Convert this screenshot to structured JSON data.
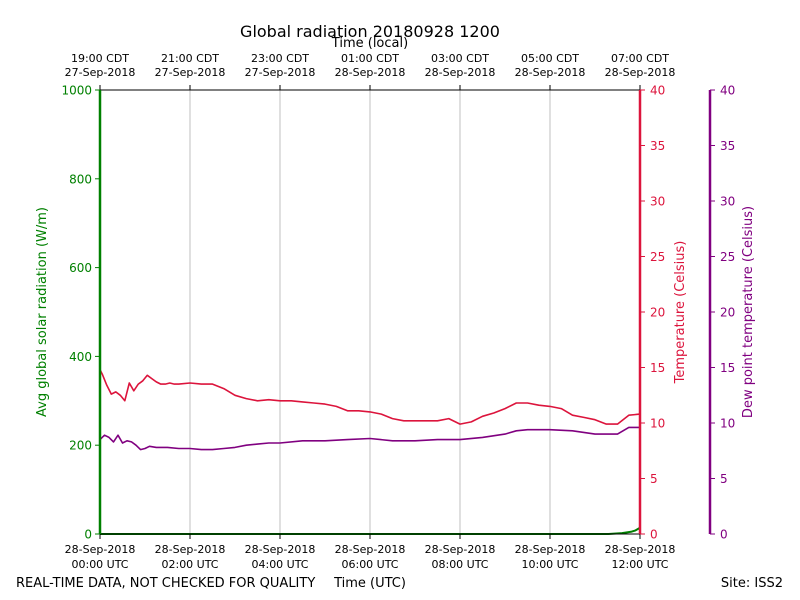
{
  "chart_data": {
    "type": "line",
    "title": "Global radiation 20180928 1200",
    "top_axis_title": "Time (local)",
    "xlabel": "Time (UTC)",
    "footer_left": "REAL-TIME DATA, NOT CHECKED FOR QUALITY",
    "footer_right": "Site: ISS2",
    "x_range_hours": [
      0,
      12
    ],
    "bottom_ticks": [
      {
        "hour": 0,
        "line1": "28-Sep-2018",
        "line2": "00:00 UTC"
      },
      {
        "hour": 2,
        "line1": "28-Sep-2018",
        "line2": "02:00 UTC"
      },
      {
        "hour": 4,
        "line1": "28-Sep-2018",
        "line2": "04:00 UTC"
      },
      {
        "hour": 6,
        "line1": "28-Sep-2018",
        "line2": "06:00 UTC"
      },
      {
        "hour": 8,
        "line1": "28-Sep-2018",
        "line2": "08:00 UTC"
      },
      {
        "hour": 10,
        "line1": "28-Sep-2018",
        "line2": "10:00 UTC"
      },
      {
        "hour": 12,
        "line1": "28-Sep-2018",
        "line2": "12:00 UTC"
      }
    ],
    "top_ticks": [
      {
        "hour": 0,
        "line1": "19:00 CDT",
        "line2": "27-Sep-2018"
      },
      {
        "hour": 2,
        "line1": "21:00 CDT",
        "line2": "27-Sep-2018"
      },
      {
        "hour": 4,
        "line1": "23:00 CDT",
        "line2": "27-Sep-2018"
      },
      {
        "hour": 6,
        "line1": "01:00 CDT",
        "line2": "28-Sep-2018"
      },
      {
        "hour": 8,
        "line1": "03:00 CDT",
        "line2": "28-Sep-2018"
      },
      {
        "hour": 10,
        "line1": "05:00 CDT",
        "line2": "28-Sep-2018"
      },
      {
        "hour": 12,
        "line1": "07:00 CDT",
        "line2": "28-Sep-2018"
      }
    ],
    "axes": {
      "radiation": {
        "label": "Avg global solar radiation (W/m)",
        "range": [
          0,
          1000
        ],
        "ticks": [
          "0",
          "200",
          "400",
          "600",
          "800",
          "1000"
        ],
        "color": "#008000"
      },
      "temperature": {
        "label": "Temperature (Celsius)",
        "range": [
          0,
          40
        ],
        "ticks": [
          "0",
          "5",
          "10",
          "15",
          "20",
          "25",
          "30",
          "35",
          "40"
        ],
        "color": "#dc143c"
      },
      "dewpoint": {
        "label": "Dew point temperature (Celsius)",
        "range": [
          0,
          40
        ],
        "ticks": [
          "0",
          "5",
          "10",
          "15",
          "20",
          "25",
          "30",
          "35",
          "40"
        ],
        "color": "#800080"
      }
    },
    "series": [
      {
        "name": "Temperature",
        "axis": "temperature",
        "color": "#dc143c",
        "x_hours": [
          0,
          0.05,
          0.15,
          0.25,
          0.35,
          0.45,
          0.55,
          0.65,
          0.75,
          0.85,
          0.95,
          1.05,
          1.15,
          1.25,
          1.35,
          1.45,
          1.55,
          1.65,
          1.75,
          2.0,
          2.25,
          2.5,
          2.75,
          3.0,
          3.25,
          3.5,
          3.75,
          4.0,
          4.25,
          4.5,
          4.75,
          5.0,
          5.25,
          5.5,
          5.75,
          6.0,
          6.25,
          6.5,
          6.75,
          7.0,
          7.25,
          7.5,
          7.75,
          8.0,
          8.25,
          8.5,
          8.75,
          9.0,
          9.25,
          9.5,
          9.75,
          10.0,
          10.25,
          10.5,
          10.75,
          11.0,
          11.25,
          11.5,
          11.75,
          12.0
        ],
        "values": [
          14.8,
          14.4,
          13.4,
          12.6,
          12.8,
          12.5,
          12.0,
          13.6,
          12.9,
          13.5,
          13.8,
          14.3,
          14.0,
          13.7,
          13.5,
          13.5,
          13.6,
          13.5,
          13.5,
          13.6,
          13.5,
          13.5,
          13.1,
          12.5,
          12.2,
          12.0,
          12.1,
          12.0,
          12.0,
          11.9,
          11.8,
          11.7,
          11.5,
          11.1,
          11.1,
          11.0,
          10.8,
          10.4,
          10.2,
          10.2,
          10.2,
          10.2,
          10.4,
          9.9,
          10.1,
          10.6,
          10.9,
          11.3,
          11.8,
          11.8,
          11.6,
          11.5,
          11.3,
          10.7,
          10.5,
          10.3,
          9.9,
          9.9,
          10.7,
          10.8
        ]
      },
      {
        "name": "Dew point",
        "axis": "dewpoint",
        "color": "#800080",
        "x_hours": [
          0,
          0.1,
          0.2,
          0.3,
          0.4,
          0.5,
          0.6,
          0.7,
          0.8,
          0.9,
          1.0,
          1.1,
          1.25,
          1.5,
          1.75,
          2.0,
          2.25,
          2.5,
          2.75,
          3.0,
          3.25,
          3.5,
          3.75,
          4.0,
          4.5,
          5.0,
          5.5,
          6.0,
          6.5,
          7.0,
          7.5,
          8.0,
          8.5,
          9.0,
          9.25,
          9.5,
          9.75,
          10.0,
          10.5,
          11.0,
          11.25,
          11.5,
          11.75,
          12.0
        ],
        "values": [
          8.5,
          8.9,
          8.7,
          8.3,
          8.9,
          8.2,
          8.4,
          8.3,
          8.0,
          7.6,
          7.7,
          7.9,
          7.8,
          7.8,
          7.7,
          7.7,
          7.6,
          7.6,
          7.7,
          7.8,
          8.0,
          8.1,
          8.2,
          8.2,
          8.4,
          8.4,
          8.5,
          8.6,
          8.4,
          8.4,
          8.5,
          8.5,
          8.7,
          9.0,
          9.3,
          9.4,
          9.4,
          9.4,
          9.3,
          9.0,
          9.0,
          9.0,
          9.6,
          9.6
        ]
      },
      {
        "name": "Avg global solar radiation",
        "axis": "radiation",
        "color": "#008000",
        "x_hours": [
          0,
          2,
          4,
          6,
          8,
          10,
          11.3,
          11.6,
          11.8,
          11.9,
          12.0
        ],
        "values": [
          0,
          0,
          0,
          0,
          0,
          0,
          0,
          2,
          5,
          8,
          14
        ]
      }
    ]
  }
}
